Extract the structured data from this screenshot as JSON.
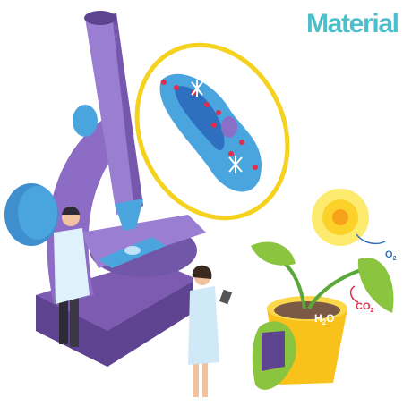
{
  "header": {
    "title": "Material"
  },
  "labels": {
    "o2": {
      "base": "O",
      "sub": "2"
    },
    "co2": {
      "base": "CO",
      "sub": "2"
    },
    "h2o": {
      "base": "H",
      "sub": "2",
      "tail": "O"
    }
  }
}
